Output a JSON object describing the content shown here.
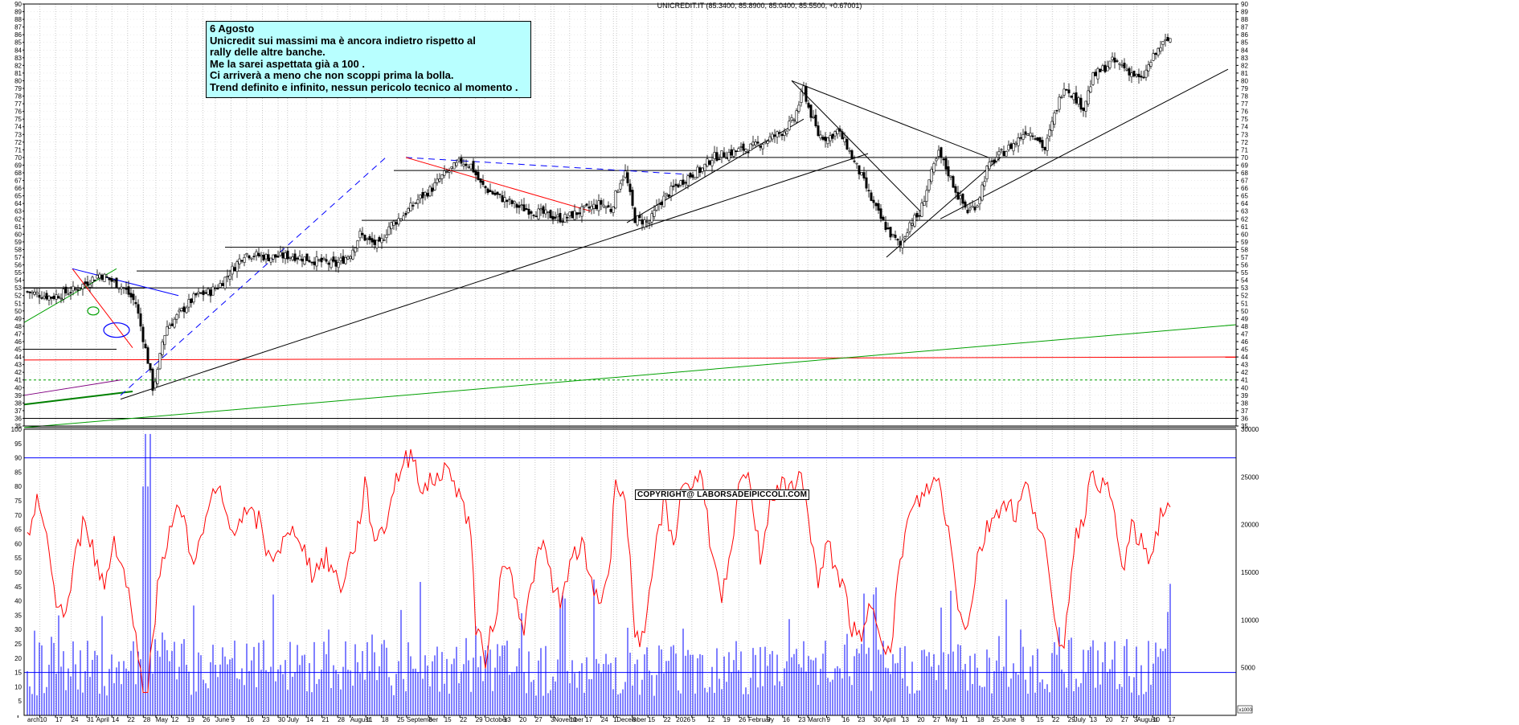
{
  "title": "UNICREDIT.IT (85.3400, 85.8900, 85.0400, 85.5500, +0.67001)",
  "note": {
    "lines": [
      "6 Agosto",
      "Unicredit sui massimi ma è ancora indietro rispetto al",
      "rally delle altre banche.",
      "Me la sarei aspettata già a 100 .",
      "Ci arriverà a meno che non scoppi prima la bolla.",
      "Trend definito e infinito,  nessun pericolo tecnico al momento ."
    ]
  },
  "copyright": "COPYRIGHT@ LABORSADEIPICCOLI.COM",
  "colors": {
    "price": "#000000",
    "rsi": "#ff0000",
    "volume": "#0000ff",
    "grid": "#b0b0b0",
    "note_bg": "#b8ffff"
  },
  "chart_data": [
    {
      "type": "candlestick",
      "ylim": [
        35,
        90
      ],
      "yticks": [
        35,
        36,
        37,
        38,
        39,
        40,
        41,
        42,
        43,
        44,
        45,
        46,
        47,
        48,
        49,
        50,
        51,
        52,
        53,
        54,
        55,
        56,
        57,
        58,
        59,
        60,
        61,
        62,
        63,
        64,
        65,
        66,
        67,
        68,
        69,
        70,
        71,
        72,
        73,
        74,
        75,
        76,
        77,
        78,
        79,
        80,
        81,
        82,
        83,
        84,
        85,
        86,
        87,
        88,
        89,
        90
      ],
      "close_series": [
        [
          0,
          52.5
        ],
        [
          10,
          51.8
        ],
        [
          20,
          52.8
        ],
        [
          30,
          54.8
        ],
        [
          40,
          53.0
        ],
        [
          45,
          51.0
        ],
        [
          48,
          46.5
        ],
        [
          50,
          43.5
        ],
        [
          52,
          40.0
        ],
        [
          54,
          42.0
        ],
        [
          56,
          46.0
        ],
        [
          58,
          48.0
        ],
        [
          60,
          48.5
        ],
        [
          64,
          50.0
        ],
        [
          70,
          52.0
        ],
        [
          76,
          52.5
        ],
        [
          80,
          53.5
        ],
        [
          84,
          55.0
        ],
        [
          90,
          57.5
        ],
        [
          100,
          57.0
        ],
        [
          110,
          57.2
        ],
        [
          120,
          56.5
        ],
        [
          128,
          56.0
        ],
        [
          134,
          57.5
        ],
        [
          138,
          60.0
        ],
        [
          142,
          59.0
        ],
        [
          146,
          58.5
        ],
        [
          150,
          61.0
        ],
        [
          156,
          62.5
        ],
        [
          162,
          64.5
        ],
        [
          168,
          66.0
        ],
        [
          172,
          67.5
        ],
        [
          176,
          68.5
        ],
        [
          180,
          69.5
        ],
        [
          184,
          69.0
        ],
        [
          188,
          66.5
        ],
        [
          192,
          65.5
        ],
        [
          198,
          64.5
        ],
        [
          204,
          63.5
        ],
        [
          210,
          63.0
        ],
        [
          216,
          62.5
        ],
        [
          222,
          62.0
        ],
        [
          228,
          62.8
        ],
        [
          234,
          63.5
        ],
        [
          238,
          64.0
        ],
        [
          242,
          63.2
        ],
        [
          246,
          67.0
        ],
        [
          248,
          68.0
        ],
        [
          252,
          62.0
        ],
        [
          258,
          61.5
        ],
        [
          262,
          64.0
        ],
        [
          268,
          66.0
        ],
        [
          274,
          67.5
        ],
        [
          280,
          68.5
        ],
        [
          284,
          70.0
        ],
        [
          290,
          70.5
        ],
        [
          296,
          71.0
        ],
        [
          302,
          71.5
        ],
        [
          308,
          72.5
        ],
        [
          314,
          73.5
        ],
        [
          318,
          75.0
        ],
        [
          322,
          79.0
        ],
        [
          324,
          76.5
        ],
        [
          328,
          73.0
        ],
        [
          332,
          72.5
        ],
        [
          336,
          73.5
        ],
        [
          340,
          71.5
        ],
        [
          342,
          70.0
        ],
        [
          346,
          67.5
        ],
        [
          350,
          64.5
        ],
        [
          354,
          62.0
        ],
        [
          358,
          60.0
        ],
        [
          362,
          58.5
        ],
        [
          366,
          61.5
        ],
        [
          370,
          62.5
        ],
        [
          374,
          67.0
        ],
        [
          378,
          70.5
        ],
        [
          382,
          68.0
        ],
        [
          386,
          65.0
        ],
        [
          390,
          63.0
        ],
        [
          394,
          64.0
        ],
        [
          398,
          68.5
        ],
        [
          402,
          70.0
        ],
        [
          406,
          71.0
        ],
        [
          410,
          72.0
        ],
        [
          414,
          73.5
        ],
        [
          418,
          73.0
        ],
        [
          422,
          71.0
        ],
        [
          426,
          75.5
        ],
        [
          430,
          79.5
        ],
        [
          434,
          78.0
        ],
        [
          438,
          76.5
        ],
        [
          442,
          80.5
        ],
        [
          446,
          81.5
        ],
        [
          450,
          82.5
        ],
        [
          454,
          82.0
        ],
        [
          458,
          81.0
        ],
        [
          462,
          80.0
        ],
        [
          466,
          82.5
        ],
        [
          470,
          84.5
        ],
        [
          474,
          85.5
        ]
      ]
    },
    {
      "type": "line",
      "series": [
        {
          "values_label": "rsi"
        }
      ],
      "ylim": [
        0,
        100
      ],
      "yticks": [
        5,
        10,
        15,
        20,
        25,
        30,
        35,
        40,
        45,
        50,
        55,
        60,
        65,
        70,
        75,
        80,
        85,
        90,
        95,
        100
      ],
      "levels": [
        90,
        15
      ],
      "rsi": [
        [
          0,
          60
        ],
        [
          4,
          78
        ],
        [
          8,
          60
        ],
        [
          12,
          40
        ],
        [
          16,
          35
        ],
        [
          20,
          55
        ],
        [
          24,
          70
        ],
        [
          28,
          55
        ],
        [
          32,
          45
        ],
        [
          36,
          62
        ],
        [
          40,
          50
        ],
        [
          44,
          35
        ],
        [
          46,
          18
        ],
        [
          48,
          10
        ],
        [
          50,
          12
        ],
        [
          52,
          25
        ],
        [
          54,
          45
        ],
        [
          56,
          55
        ],
        [
          60,
          68
        ],
        [
          64,
          72
        ],
        [
          68,
          55
        ],
        [
          72,
          60
        ],
        [
          76,
          75
        ],
        [
          80,
          78
        ],
        [
          84,
          65
        ],
        [
          90,
          70
        ],
        [
          96,
          68
        ],
        [
          100,
          55
        ],
        [
          106,
          60
        ],
        [
          112,
          65
        ],
        [
          118,
          50
        ],
        [
          124,
          55
        ],
        [
          130,
          45
        ],
        [
          136,
          60
        ],
        [
          140,
          80
        ],
        [
          144,
          62
        ],
        [
          148,
          65
        ],
        [
          152,
          80
        ],
        [
          156,
          88
        ],
        [
          160,
          92
        ],
        [
          164,
          78
        ],
        [
          168,
          82
        ],
        [
          172,
          85
        ],
        [
          176,
          85
        ],
        [
          180,
          75
        ],
        [
          184,
          65
        ],
        [
          186,
          30
        ],
        [
          190,
          20
        ],
        [
          194,
          35
        ],
        [
          198,
          55
        ],
        [
          202,
          45
        ],
        [
          206,
          30
        ],
        [
          210,
          50
        ],
        [
          214,
          60
        ],
        [
          218,
          45
        ],
        [
          222,
          40
        ],
        [
          226,
          55
        ],
        [
          230,
          60
        ],
        [
          234,
          45
        ],
        [
          238,
          40
        ],
        [
          242,
          55
        ],
        [
          244,
          85
        ],
        [
          248,
          75
        ],
        [
          252,
          30
        ],
        [
          256,
          25
        ],
        [
          260,
          55
        ],
        [
          264,
          75
        ],
        [
          268,
          60
        ],
        [
          272,
          82
        ],
        [
          276,
          80
        ],
        [
          280,
          85
        ],
        [
          284,
          55
        ],
        [
          288,
          40
        ],
        [
          292,
          55
        ],
        [
          296,
          85
        ],
        [
          300,
          80
        ],
        [
          304,
          55
        ],
        [
          308,
          75
        ],
        [
          312,
          80
        ],
        [
          316,
          78
        ],
        [
          320,
          85
        ],
        [
          324,
          70
        ],
        [
          328,
          45
        ],
        [
          332,
          60
        ],
        [
          336,
          50
        ],
        [
          340,
          40
        ],
        [
          342,
          30
        ],
        [
          346,
          25
        ],
        [
          350,
          40
        ],
        [
          354,
          30
        ],
        [
          358,
          20
        ],
        [
          362,
          55
        ],
        [
          366,
          70
        ],
        [
          370,
          75
        ],
        [
          374,
          80
        ],
        [
          378,
          82
        ],
        [
          382,
          65
        ],
        [
          386,
          40
        ],
        [
          390,
          30
        ],
        [
          394,
          55
        ],
        [
          398,
          65
        ],
        [
          402,
          72
        ],
        [
          406,
          75
        ],
        [
          410,
          70
        ],
        [
          414,
          80
        ],
        [
          418,
          72
        ],
        [
          422,
          60
        ],
        [
          426,
          30
        ],
        [
          430,
          25
        ],
        [
          434,
          60
        ],
        [
          438,
          70
        ],
        [
          442,
          85
        ],
        [
          446,
          80
        ],
        [
          450,
          75
        ],
        [
          454,
          50
        ],
        [
          458,
          65
        ],
        [
          462,
          60
        ],
        [
          466,
          55
        ],
        [
          470,
          70
        ],
        [
          474,
          75
        ]
      ]
    },
    {
      "type": "bar",
      "ylim": [
        0,
        30000
      ],
      "yticks": [
        5000,
        10000,
        15000,
        20000,
        25000,
        30000
      ],
      "y2label": "x1000",
      "values_label": "volume"
    }
  ],
  "x_labels": [
    {
      "i": -3,
      "t": "arch"
    },
    {
      "i": 4,
      "t": "10"
    },
    {
      "i": 9,
      "t": "17"
    },
    {
      "i": 14,
      "t": "24"
    },
    {
      "i": 19,
      "t": "31"
    },
    {
      "i": 22,
      "t": "April"
    },
    {
      "i": 27,
      "t": "14"
    },
    {
      "i": 32,
      "t": "22"
    },
    {
      "i": 37,
      "t": "28"
    },
    {
      "i": 41,
      "t": "May"
    },
    {
      "i": 46,
      "t": "12"
    },
    {
      "i": 51,
      "t": "19"
    },
    {
      "i": 56,
      "t": "26"
    },
    {
      "i": 60,
      "t": "June"
    },
    {
      "i": 65,
      "t": "9"
    },
    {
      "i": 70,
      "t": "16"
    },
    {
      "i": 75,
      "t": "23"
    },
    {
      "i": 80,
      "t": "30"
    },
    {
      "i": 83,
      "t": "July"
    },
    {
      "i": 89,
      "t": "14"
    },
    {
      "i": 94,
      "t": "21"
    },
    {
      "i": 99,
      "t": "28"
    },
    {
      "i": 103,
      "t": "August"
    },
    {
      "i": 108,
      "t": "11"
    },
    {
      "i": 113,
      "t": "18"
    },
    {
      "i": 118,
      "t": "25"
    },
    {
      "i": 121,
      "t": "September"
    },
    {
      "i": 128,
      "t": "8"
    },
    {
      "i": 133,
      "t": "15"
    },
    {
      "i": 138,
      "t": "22"
    },
    {
      "i": 143,
      "t": "29"
    },
    {
      "i": 146,
      "t": "October"
    },
    {
      "i": 152,
      "t": "13"
    },
    {
      "i": 157,
      "t": "20"
    },
    {
      "i": 162,
      "t": "27"
    },
    {
      "i": 167,
      "t": "3"
    },
    {
      "i": 168,
      "t": "November"
    },
    {
      "i": 173,
      "t": "10"
    },
    {
      "i": 178,
      "t": "17"
    },
    {
      "i": 183,
      "t": "24"
    },
    {
      "i": 187,
      "t": "1"
    },
    {
      "i": 188,
      "t": "December"
    },
    {
      "i": 193,
      "t": "8"
    },
    {
      "i": 198,
      "t": "15"
    },
    {
      "i": 203,
      "t": "22"
    },
    {
      "i": 207,
      "t": "2026"
    },
    {
      "i": 212,
      "t": "5"
    },
    {
      "i": 217,
      "t": "12"
    },
    {
      "i": 222,
      "t": "19"
    },
    {
      "i": 227,
      "t": "26"
    },
    {
      "i": 230,
      "t": "February"
    },
    {
      "i": 236,
      "t": "9"
    },
    {
      "i": 241,
      "t": "16"
    },
    {
      "i": 246,
      "t": "23"
    },
    {
      "i": 249,
      "t": "March"
    },
    {
      "i": 255,
      "t": "9"
    },
    {
      "i": 260,
      "t": "16"
    },
    {
      "i": 265,
      "t": "23"
    },
    {
      "i": 270,
      "t": "30"
    },
    {
      "i": 273,
      "t": "April"
    },
    {
      "i": 279,
      "t": "13"
    },
    {
      "i": 284,
      "t": "20"
    },
    {
      "i": 289,
      "t": "27"
    },
    {
      "i": 293,
      "t": "May"
    },
    {
      "i": 298,
      "t": "11"
    },
    {
      "i": 303,
      "t": "18"
    },
    {
      "i": 308,
      "t": "25"
    },
    {
      "i": 311,
      "t": "June"
    },
    {
      "i": 317,
      "t": "8"
    },
    {
      "i": 322,
      "t": "15"
    },
    {
      "i": 327,
      "t": "22"
    },
    {
      "i": 332,
      "t": "29"
    },
    {
      "i": 334,
      "t": "July"
    },
    {
      "i": 339,
      "t": "13"
    },
    {
      "i": 344,
      "t": "20"
    },
    {
      "i": 349,
      "t": "27"
    },
    {
      "i": 353,
      "t": "3"
    },
    {
      "i": 354,
      "t": "August"
    },
    {
      "i": 359,
      "t": "10"
    },
    {
      "i": 364,
      "t": "17"
    }
  ]
}
